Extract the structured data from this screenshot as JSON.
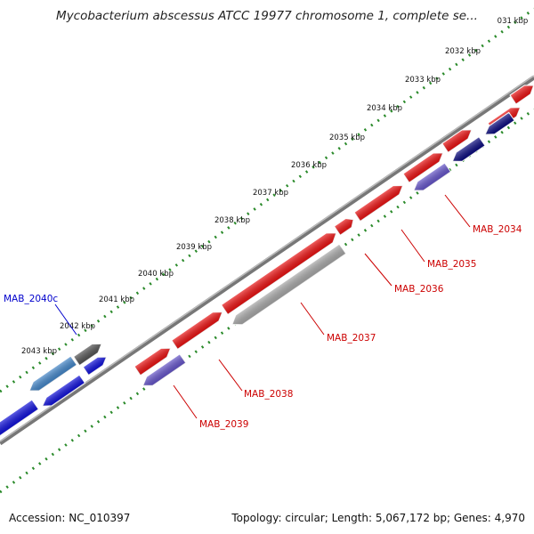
{
  "header": {
    "title": "Mycobacterium abscessus ATCC 19977 chromosome 1, complete se..."
  },
  "footer": {
    "accession": "Accession: NC_010397",
    "topology": "Topology: circular; Length: 5,067,172 bp; Genes: 4,970"
  },
  "colors": {
    "forward": "#ee1111",
    "reverse_blue": "#1010dd",
    "reverse_navy": "#0a0a80",
    "reverse_lavender": "#6655cc",
    "grey": "#aaaaaa",
    "dark_grey": "#555555",
    "backbone": "#808080",
    "tick_green": "#2a8a2a",
    "label_red": "#cc0000",
    "label_blue": "#0000cc"
  },
  "scale": {
    "unit": "kbp",
    "ticks": [
      "031 kbp",
      "2032 kbp",
      "2033 kbp",
      "2034 kbp",
      "2035 kbp",
      "2036 kbp",
      "2037 kbp",
      "2038 kbp",
      "2039 kbp",
      "2040 kbp",
      "2041 kbp",
      "2042 kbp",
      "2043 kbp"
    ]
  },
  "genes": [
    {
      "id": "MAB_2034",
      "label": "MAB_2034",
      "strand": "reverse"
    },
    {
      "id": "MAB_2035",
      "label": "MAB_2035",
      "strand": "reverse"
    },
    {
      "id": "MAB_2036",
      "label": "MAB_2036",
      "strand": "forward"
    },
    {
      "id": "MAB_2037",
      "label": "MAB_2037",
      "strand": "reverse"
    },
    {
      "id": "MAB_2038",
      "label": "MAB_2038",
      "strand": "forward"
    },
    {
      "id": "MAB_2039",
      "label": "MAB_2039",
      "strand": "reverse"
    },
    {
      "id": "MAB_2040c",
      "label": "MAB_2040c",
      "strand": "reverse"
    }
  ]
}
